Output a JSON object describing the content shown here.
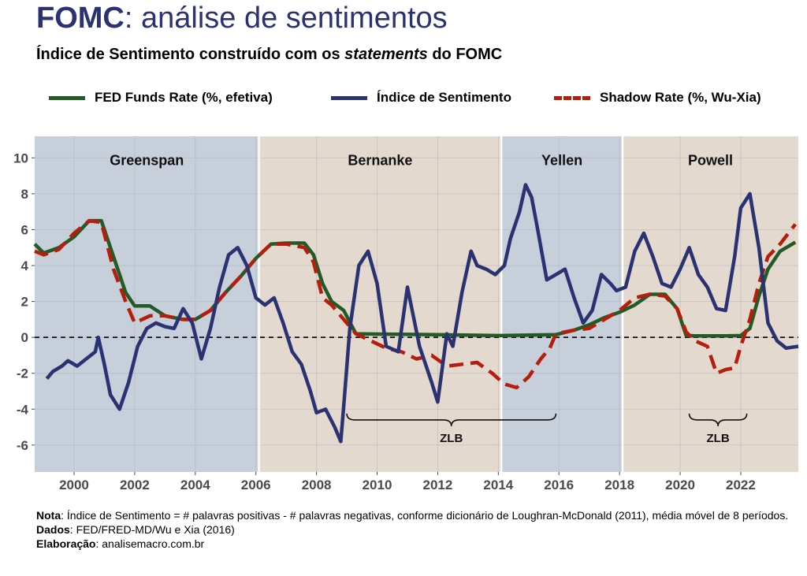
{
  "header": {
    "title_bold": "FOMC",
    "title_rest": ": análise de sentimentos",
    "subtitle_pre": "Índice de Sentimento construído com os ",
    "subtitle_em": "statements",
    "subtitle_post": " do FOMC"
  },
  "colors": {
    "fed": "#245a27",
    "sentiment": "#2b3272",
    "shadow": "#b51e0c",
    "era_blue": "#c6cfda",
    "era_beige": "#e3d9ce"
  },
  "chart_data": {
    "type": "line",
    "title": "FOMC: análise de sentimentos",
    "subtitle": "Índice de Sentimento construído com os statements do FOMC",
    "xlim": [
      1998.7,
      2023.9
    ],
    "ylim": [
      -7.5,
      11.2
    ],
    "x_ticks": [
      2000,
      2002,
      2004,
      2006,
      2008,
      2010,
      2012,
      2014,
      2016,
      2018,
      2020,
      2022
    ],
    "y_ticks": [
      -6,
      -4,
      -2,
      0,
      2,
      4,
      6,
      8,
      10
    ],
    "grid": true,
    "legend_position": "top",
    "eras": [
      {
        "name": "Greenspan",
        "start": 1998.7,
        "end": 2006.1,
        "tone": "blue"
      },
      {
        "name": "Bernanke",
        "start": 2006.1,
        "end": 2014.1,
        "tone": "beige"
      },
      {
        "name": "Yellen",
        "start": 2014.1,
        "end": 2018.1,
        "tone": "blue"
      },
      {
        "name": "Powell",
        "start": 2018.1,
        "end": 2023.9,
        "tone": "beige"
      }
    ],
    "annotations": [
      {
        "label": "ZLB",
        "start": 2009.0,
        "end": 2015.9,
        "y": -4.6
      },
      {
        "label": "ZLB",
        "start": 2020.3,
        "end": 2022.2,
        "y": -4.6
      }
    ],
    "series": [
      {
        "name": "FED Funds Rate (%, efetiva)",
        "style": "solid",
        "x": [
          1998.7,
          1999.0,
          1999.5,
          2000.0,
          2000.5,
          2000.9,
          2001.3,
          2001.7,
          2002.0,
          2002.5,
          2003.0,
          2003.6,
          2004.0,
          2004.5,
          2005.0,
          2005.5,
          2006.0,
          2006.5,
          2007.0,
          2007.6,
          2007.9,
          2008.2,
          2008.5,
          2008.9,
          2009.3,
          2010.0,
          2012.0,
          2014.0,
          2015.9,
          2016.5,
          2017.0,
          2017.5,
          2018.0,
          2018.5,
          2019.0,
          2019.5,
          2019.9,
          2020.2,
          2020.5,
          2021.5,
          2022.0,
          2022.3,
          2022.6,
          2022.9,
          2023.3,
          2023.8
        ],
        "values": [
          5.2,
          4.7,
          5.0,
          5.6,
          6.5,
          6.5,
          4.5,
          2.5,
          1.75,
          1.75,
          1.2,
          1.0,
          1.0,
          1.5,
          2.5,
          3.4,
          4.4,
          5.2,
          5.25,
          5.25,
          4.6,
          3.0,
          2.0,
          1.5,
          0.2,
          0.18,
          0.15,
          0.1,
          0.15,
          0.4,
          0.7,
          1.1,
          1.4,
          1.8,
          2.4,
          2.4,
          1.6,
          0.1,
          0.08,
          0.08,
          0.1,
          0.5,
          2.3,
          3.8,
          4.8,
          5.3
        ]
      },
      {
        "name": "Índice de Sentimento",
        "style": "solid",
        "x": [
          1999.1,
          1999.3,
          1999.6,
          1999.8,
          2000.1,
          2000.4,
          2000.7,
          2000.8,
          2001.0,
          2001.2,
          2001.5,
          2001.8,
          2002.1,
          2002.4,
          2002.7,
          2003.0,
          2003.3,
          2003.6,
          2003.9,
          2004.2,
          2004.5,
          2004.8,
          2005.1,
          2005.4,
          2005.7,
          2006.0,
          2006.3,
          2006.6,
          2006.9,
          2007.2,
          2007.5,
          2007.8,
          2008.0,
          2008.3,
          2008.6,
          2008.8,
          2008.9,
          2009.1,
          2009.4,
          2009.7,
          2010.0,
          2010.3,
          2010.7,
          2011.0,
          2011.4,
          2011.8,
          2012.0,
          2012.3,
          2012.5,
          2012.8,
          2013.1,
          2013.3,
          2013.6,
          2013.9,
          2014.2,
          2014.4,
          2014.7,
          2014.9,
          2015.1,
          2015.3,
          2015.6,
          2015.9,
          2016.2,
          2016.5,
          2016.8,
          2017.1,
          2017.4,
          2017.7,
          2017.9,
          2018.2,
          2018.5,
          2018.8,
          2019.1,
          2019.4,
          2019.7,
          2020.0,
          2020.3,
          2020.6,
          2020.9,
          2021.2,
          2021.5,
          2021.8,
          2022.0,
          2022.3,
          2022.6,
          2022.9,
          2023.2,
          2023.5,
          2023.9
        ],
        "values": [
          -2.3,
          -1.9,
          -1.6,
          -1.3,
          -1.6,
          -1.2,
          -0.8,
          0.0,
          -1.5,
          -3.2,
          -4.0,
          -2.5,
          -0.5,
          0.5,
          0.8,
          0.6,
          0.5,
          1.6,
          0.8,
          -1.2,
          0.5,
          2.8,
          4.6,
          5.0,
          4.0,
          2.2,
          1.8,
          2.2,
          0.8,
          -0.8,
          -1.5,
          -3.0,
          -4.2,
          -4.0,
          -5.0,
          -5.8,
          -3.8,
          0.5,
          4.0,
          4.8,
          3.0,
          -0.5,
          -0.8,
          2.8,
          -0.5,
          -2.5,
          -3.6,
          0.2,
          -0.5,
          2.5,
          4.8,
          4.0,
          3.8,
          3.5,
          4.0,
          5.5,
          7.0,
          8.5,
          7.8,
          6.0,
          3.2,
          3.5,
          3.8,
          2.2,
          0.8,
          1.5,
          3.5,
          3.0,
          2.6,
          2.8,
          4.8,
          5.8,
          4.5,
          3.0,
          2.8,
          3.8,
          5.0,
          3.5,
          2.8,
          1.6,
          1.5,
          4.5,
          7.2,
          8.0,
          5.0,
          0.8,
          -0.2,
          -0.6,
          -0.5
        ]
      },
      {
        "name": "Shadow Rate (%, Wu-Xia)",
        "style": "dashed",
        "x": [
          1998.7,
          1999.0,
          1999.5,
          2000.0,
          2000.5,
          2000.9,
          2001.3,
          2001.7,
          2002.0,
          2002.5,
          2003.0,
          2003.6,
          2004.0,
          2004.5,
          2005.0,
          2005.5,
          2006.0,
          2006.5,
          2007.0,
          2007.6,
          2007.9,
          2008.2,
          2008.5,
          2008.9,
          2009.3,
          2009.8,
          2010.3,
          2010.8,
          2011.3,
          2011.8,
          2012.3,
          2012.8,
          2013.3,
          2013.8,
          2014.2,
          2014.6,
          2015.0,
          2015.4,
          2015.7,
          2015.9,
          2016.5,
          2017.0,
          2017.5,
          2018.0,
          2018.5,
          2019.0,
          2019.5,
          2019.9,
          2020.2,
          2020.5,
          2020.9,
          2021.2,
          2021.5,
          2021.8,
          2022.0,
          2022.3,
          2022.6,
          2022.9,
          2023.3,
          2023.8
        ],
        "values": [
          4.8,
          4.6,
          4.9,
          5.8,
          6.5,
          6.4,
          3.8,
          2.0,
          0.8,
          1.2,
          1.2,
          1.0,
          1.0,
          1.5,
          2.5,
          3.4,
          4.4,
          5.2,
          5.2,
          5.0,
          4.2,
          2.2,
          1.8,
          1.0,
          0.2,
          -0.2,
          -0.6,
          -0.8,
          -1.2,
          -1.0,
          -1.6,
          -1.5,
          -1.4,
          -2.0,
          -2.6,
          -2.8,
          -2.2,
          -1.2,
          -0.6,
          0.2,
          0.4,
          0.5,
          1.0,
          1.5,
          2.2,
          2.4,
          2.3,
          1.6,
          0.3,
          -0.2,
          -0.5,
          -2.0,
          -1.8,
          -1.7,
          -0.5,
          1.0,
          3.0,
          4.5,
          5.2,
          6.3
        ]
      }
    ]
  },
  "notes": {
    "nota_label": "Nota",
    "nota_text": ": Índice de Sentimento = # palavras positivas - # palavras negativas, conforme dicionário de Loughran-McDonald (2011), média móvel de 8 períodos.",
    "dados_label": "Dados",
    "dados_text": ": FED/FRED-MD/Wu e Xia (2016)",
    "elab_label": "Elaboração",
    "elab_text": ": analisemacro.com.br"
  }
}
